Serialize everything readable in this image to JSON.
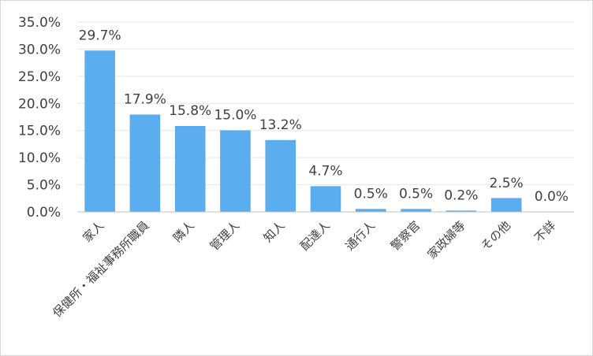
{
  "chart_data": {
    "type": "bar",
    "title": "",
    "xlabel": "",
    "ylabel": "",
    "categories": [
      "家人",
      "保健所・福祉事務所職員",
      "隣人",
      "管理人",
      "知人",
      "配達人",
      "通行人",
      "警察官",
      "家政婦等",
      "その他",
      "不詳"
    ],
    "values": [
      29.7,
      17.9,
      15.8,
      15.0,
      13.2,
      4.7,
      0.5,
      0.5,
      0.2,
      2.5,
      0.0
    ],
    "data_labels": [
      "29.7%",
      "17.9%",
      "15.8%",
      "15.0%",
      "13.2%",
      "4.7%",
      "0.5%",
      "0.5%",
      "0.2%",
      "2.5%",
      "0.0%"
    ],
    "ylim": [
      0,
      35
    ],
    "yticks": [
      0,
      5,
      10,
      15,
      20,
      25,
      30,
      35
    ],
    "ytick_labels": [
      "0.0%",
      "5.0%",
      "10.0%",
      "15.0%",
      "20.0%",
      "25.0%",
      "30.0%",
      "35.0%"
    ],
    "grid": true,
    "legend": "none",
    "colors": {
      "bar": "#5aaef0",
      "bar_edge": "#4f9fe0",
      "grid": "#e6e6e6",
      "axis": "#bfbfbf",
      "text": "#404040"
    }
  }
}
